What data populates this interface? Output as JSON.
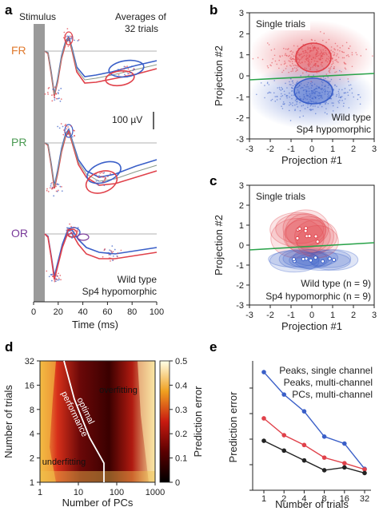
{
  "panels": {
    "a": "a",
    "b": "b",
    "c": "c",
    "d": "d",
    "e": "e"
  },
  "colors": {
    "wild": "#3a5fc8",
    "sp4": "#e0414a",
    "green": "#2aa34a",
    "fr": "#e07a2e",
    "pr": "#4a9a52",
    "or": "#7a3a9a",
    "black": "#222222"
  },
  "panel_a": {
    "stimulus": "Stimulus",
    "avg_line1": "Averages of",
    "avg_line2": "32 trials",
    "scale": "100 µV",
    "rows": [
      "FR",
      "PR",
      "OR"
    ],
    "legend": [
      "Wild type",
      "Sp4 hypomorphic"
    ],
    "xlabel": "Time (ms)",
    "xticks": [
      "0",
      "20",
      "40",
      "60",
      "80",
      "100"
    ]
  },
  "panel_b": {
    "inset": "Single trials",
    "legend": [
      "Wild type",
      "Sp4 hypomorphic"
    ],
    "xlabel": "Projection #1",
    "ylabel": "Projection #2",
    "xticks": [
      "-3",
      "-2",
      "-1",
      "0",
      "1",
      "2",
      "3"
    ],
    "yticks": [
      "-3",
      "-2",
      "-1",
      "0",
      "1",
      "2",
      "3"
    ]
  },
  "panel_c": {
    "inset": "Single trials",
    "legend": [
      "Wild type (n = 9)",
      "Sp4 hypomorphic (n = 9)"
    ],
    "xlabel": "Projection #1",
    "ylabel": "Projection #2",
    "xticks": [
      "-3",
      "-2",
      "-1",
      "0",
      "1",
      "2",
      "3"
    ],
    "yticks": [
      "-3",
      "-2",
      "-1",
      "0",
      "1",
      "2",
      "3"
    ]
  },
  "panel_d": {
    "ylabel": "Number of trials",
    "xlabel": "Number of PCs",
    "yticks": [
      "1",
      "2",
      "4",
      "8",
      "16",
      "32"
    ],
    "xticks": [
      "1",
      "10",
      "100",
      "1000"
    ],
    "cbar_label": "Prediction error",
    "cbar_ticks": [
      "0",
      "0.1",
      "0.2",
      "0.3",
      "0.4",
      "0.5"
    ],
    "overfitting": "overfitting",
    "underfitting": "underfitting",
    "optimal1": "optimal",
    "optimal2": "performance"
  },
  "chart_data": [
    {
      "type": "line",
      "title": "",
      "xlabel": "Number of trials",
      "ylabel": "Prediction error",
      "x": [
        1,
        2,
        4,
        8,
        16,
        32
      ],
      "series": [
        {
          "name": "Peaks, single channel",
          "color": "#3a5fc8",
          "values": [
            0.41,
            0.33,
            0.27,
            0.18,
            0.155,
            0.065
          ]
        },
        {
          "name": "Peaks, multi-channel",
          "color": "#e0414a",
          "values": [
            0.245,
            0.185,
            0.15,
            0.105,
            0.085,
            0.063
          ]
        },
        {
          "name": "PCs, multi-channel",
          "color": "#222222",
          "values": [
            0.165,
            0.13,
            0.095,
            0.06,
            0.07,
            0.05
          ]
        }
      ],
      "xticks": [
        "1",
        "2",
        "4",
        "8",
        "16",
        "32"
      ],
      "yticks": [
        "",
        "",
        "",
        "",
        ""
      ],
      "log_x": true,
      "ylim": [
        0,
        0.45
      ]
    }
  ]
}
